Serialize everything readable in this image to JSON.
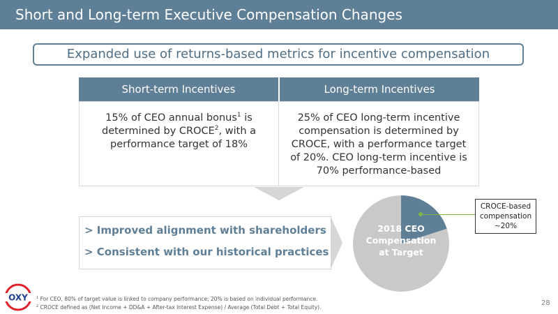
{
  "slide": {
    "title": "Short and Long-term Executive Compensation Changes",
    "subtitle": "Expanded use of returns-based metrics for incentive compensation",
    "page_number": "28"
  },
  "columns": {
    "short_term": {
      "header": "Short-term Incentives",
      "body_line1_pre": "15% of CEO annual bonus",
      "body_line1_sup": "1",
      "body_line1_post": " is",
      "body_line2_pre": "determined by CROCE",
      "body_line2_sup": "2",
      "body_line2_post": ", with a",
      "body_line3": "performance target of 18%"
    },
    "long_term": {
      "header": "Long-term Incentives",
      "body_lines": [
        "25% of CEO long-term incentive",
        "compensation is determined by",
        "CROCE, with a performance target",
        "of 20%.  CEO long-term incentive is",
        "70% performance-based"
      ]
    }
  },
  "outcomes": [
    "> Improved alignment with shareholders",
    "> Consistent with our historical practices"
  ],
  "pie": {
    "labels": [
      "2018 CEO",
      "Compensation",
      "at Target"
    ],
    "callout_lines": [
      "CROCE-based",
      "compensation",
      "~20%"
    ],
    "croce_fraction": 0.2,
    "colors": {
      "croce": "#5e7f96",
      "other": "#c9c9c9"
    }
  },
  "logo": {
    "text": "OXY"
  },
  "footnotes": {
    "f1_sup": "1",
    "f1_text": " For CEO, 80% of target value is linked to company performance; 20% is based on individual performance.",
    "f2_sup": "2",
    "f2_text": " CROCE defined as (Net Income + DD&A + After-tax Interest Expense) / Average (Total Debt + Total Equity)."
  },
  "colors": {
    "accent": "#5e7f96",
    "callout_green": "#7cb342",
    "logo_red": "#e0212a"
  }
}
